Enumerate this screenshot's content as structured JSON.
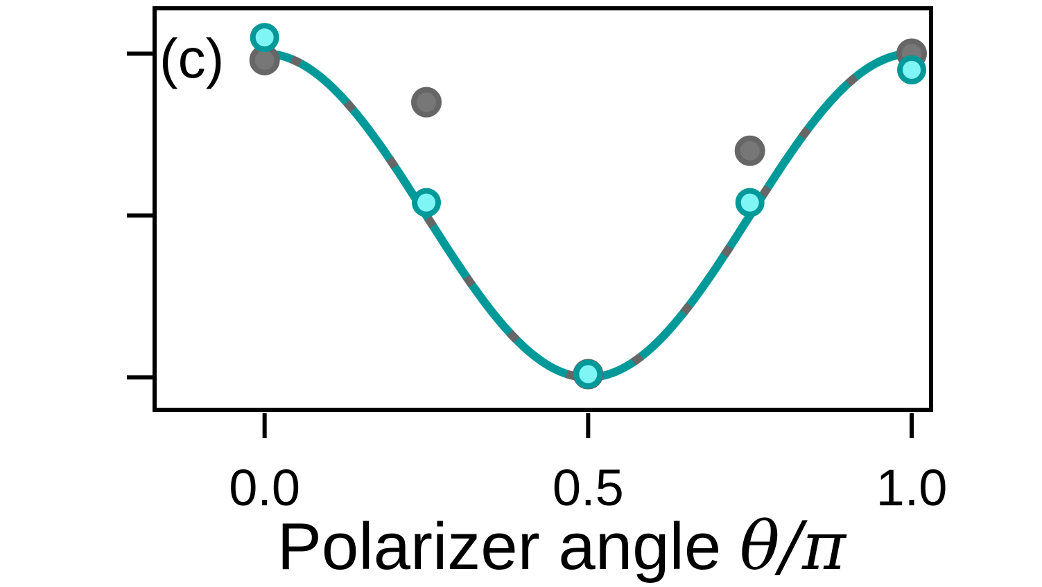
{
  "chart_data": {
    "type": "scatter",
    "panel_label": "(c)",
    "xlabel_text": "Polarizer angle ",
    "xlabel_math": "θ/π",
    "xlim": [
      -0.17,
      1.03
    ],
    "ylim": [
      -0.1,
      1.14
    ],
    "x_ticks": [
      0.0,
      0.5,
      1.0
    ],
    "x_tick_labels": [
      "0.0",
      "0.5",
      "1.0"
    ],
    "y_ticks": [
      0.0,
      0.5,
      1.0
    ],
    "grid": false,
    "colors": {
      "teal": "#009999",
      "teal_fill": "#7ff5f5",
      "gray": "#666666",
      "gray_fill": "#777777",
      "axis": "#000000"
    },
    "series": [
      {
        "style": "gray-markers",
        "x": [
          0.0,
          0.25,
          0.5,
          0.75,
          1.0
        ],
        "y": [
          0.98,
          0.85,
          0.01,
          0.7,
          1.0
        ]
      },
      {
        "style": "teal-markers",
        "x": [
          0.0,
          0.25,
          0.5,
          0.75,
          1.0
        ],
        "y": [
          1.05,
          0.54,
          0.01,
          0.54,
          0.95
        ]
      }
    ],
    "fit_curve": {
      "function": "cos^2",
      "style": "teal solid line overlaid with gray dashed line"
    }
  }
}
